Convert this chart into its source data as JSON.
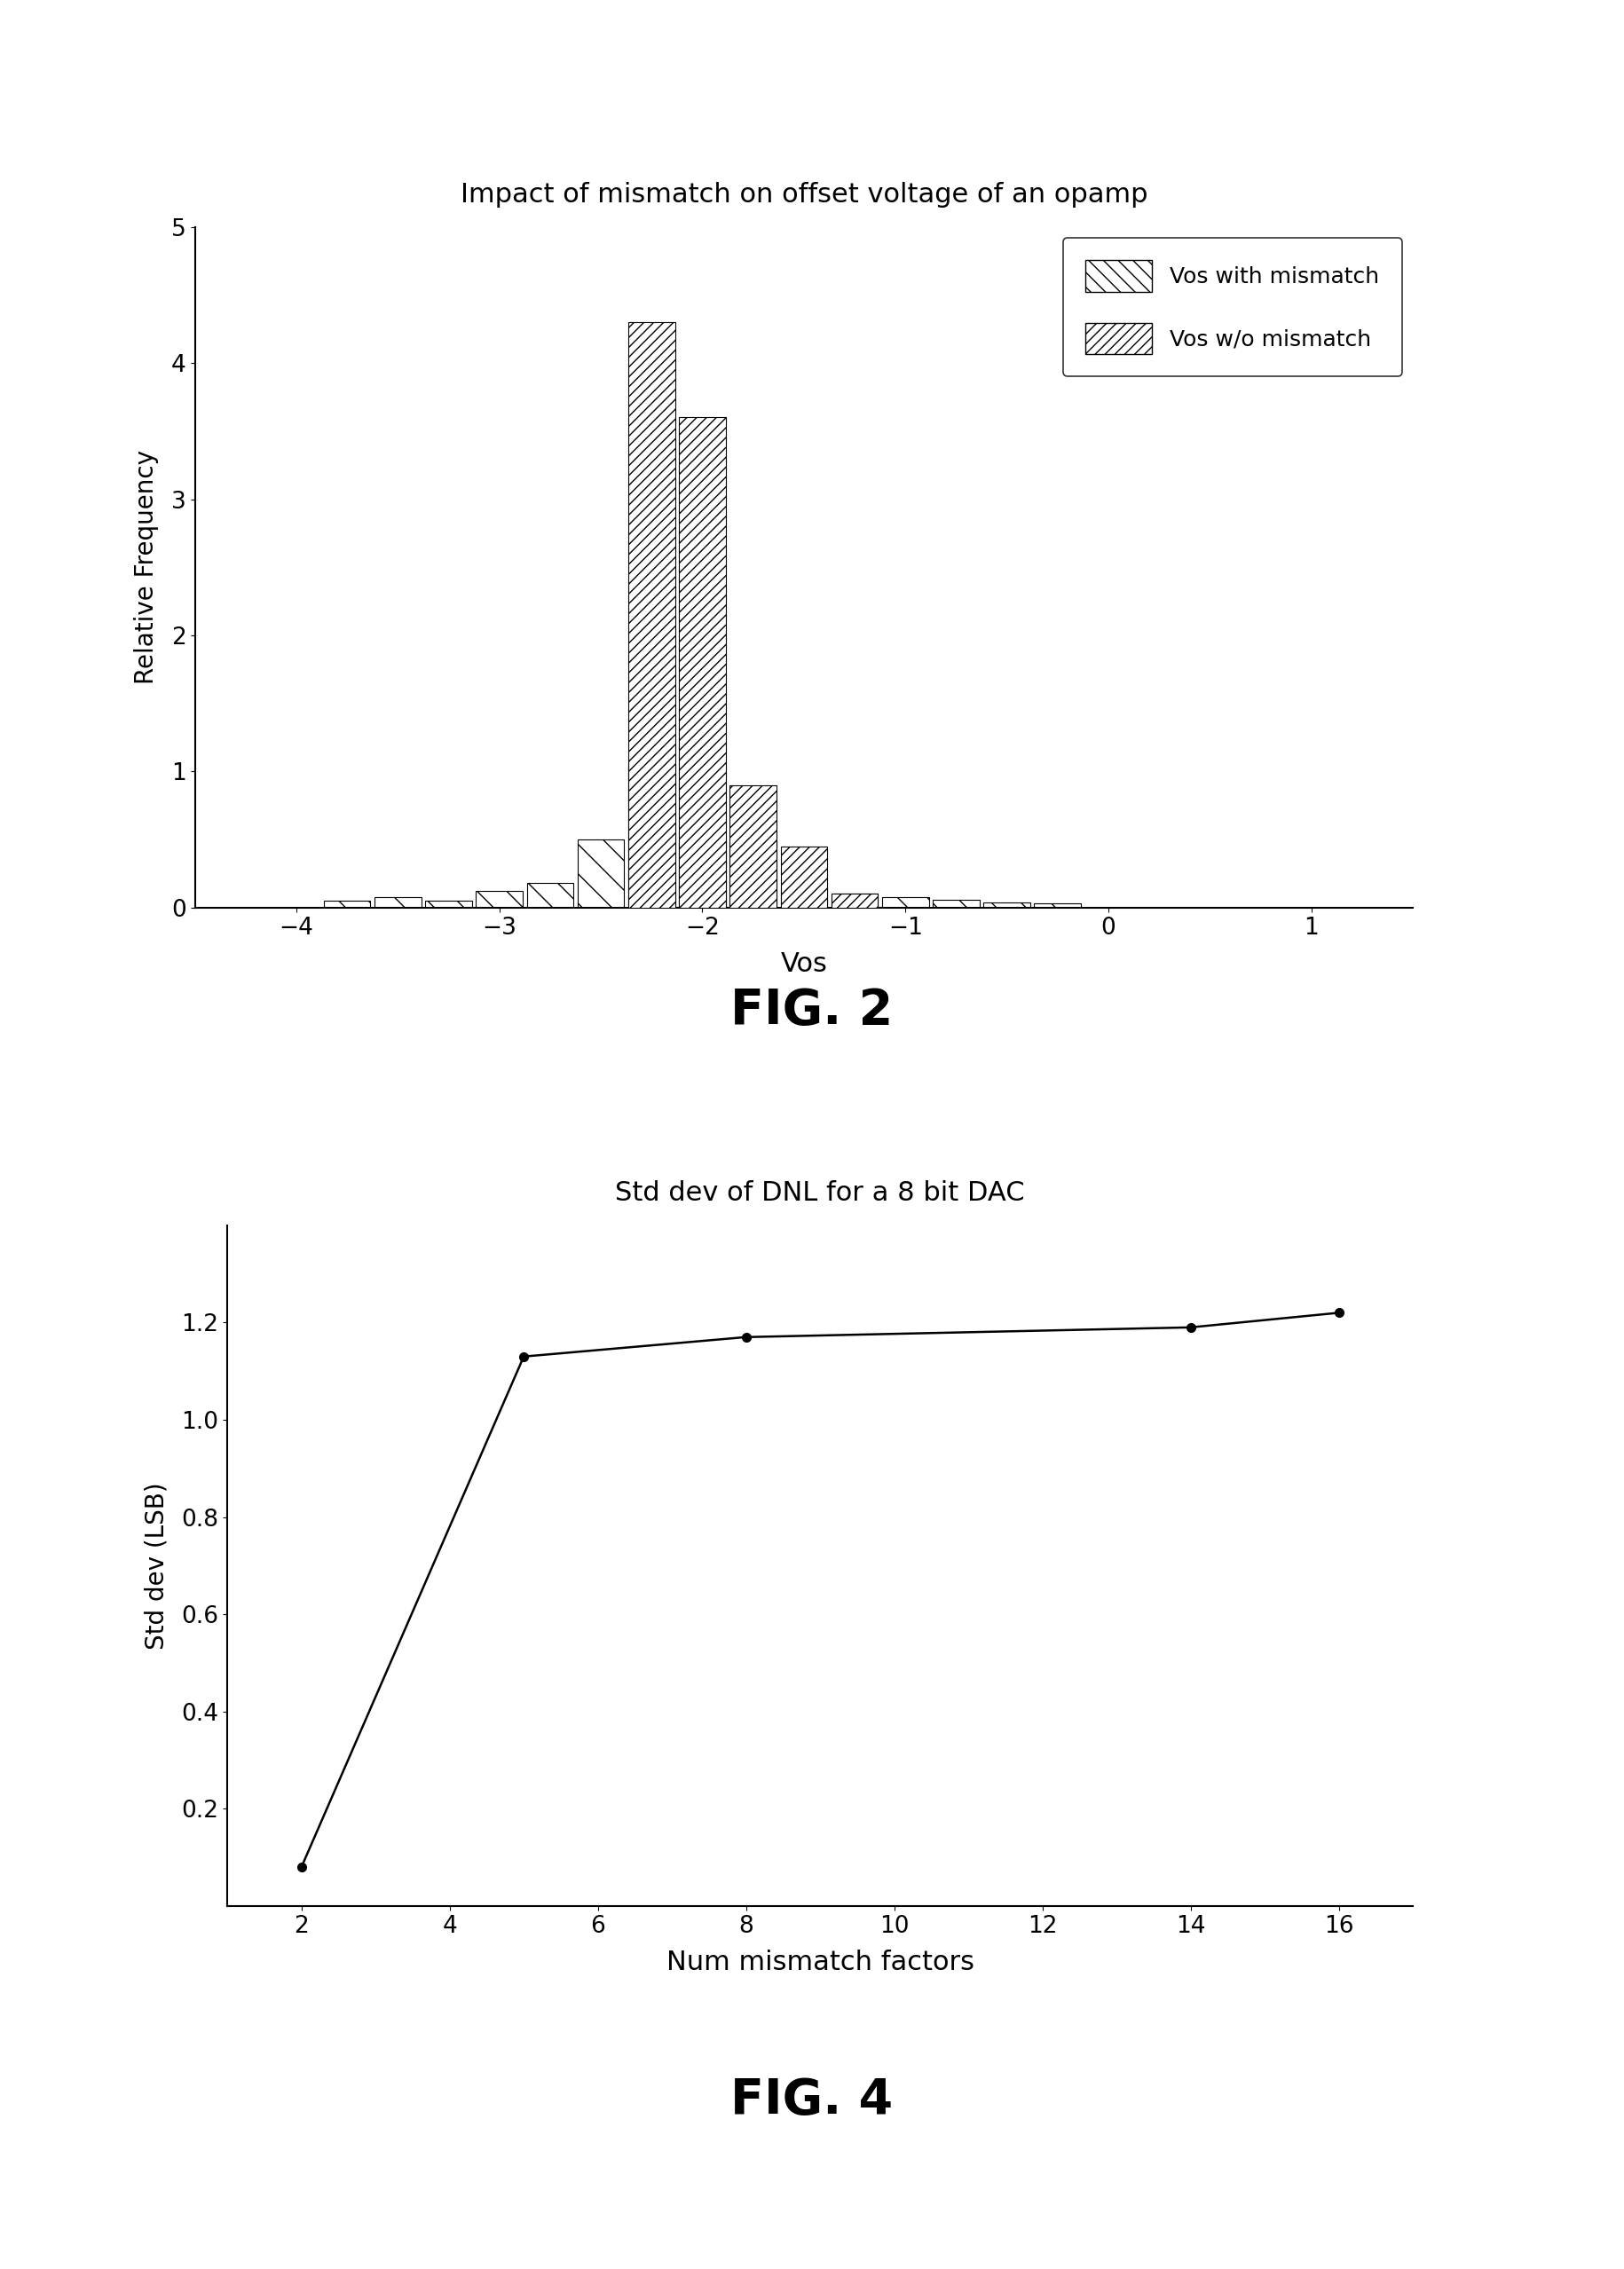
{
  "fig2_title": "Impact of mismatch on offset voltage of an opamp",
  "fig2_xlabel": "Vos",
  "fig2_ylabel": "Relative Frequency",
  "fig2_xlim": [
    -4.5,
    1.5
  ],
  "fig2_ylim": [
    0,
    5
  ],
  "fig2_xticks": [
    -4,
    -3,
    -2,
    -1,
    0,
    1
  ],
  "fig2_yticks": [
    0,
    1,
    2,
    3,
    4,
    5
  ],
  "fig2_label1": "Vos with mismatch",
  "fig2_label2": "Vos w/o mismatch",
  "fig2_caption": "FIG. 2",
  "vos_with_mismatch_bins": [
    -3.75,
    -3.5,
    -3.25,
    -3.0,
    -2.75,
    -2.5,
    -2.25,
    -2.0,
    -1.75,
    -1.5,
    -1.25,
    -1.0,
    -0.75,
    -0.5,
    -0.25
  ],
  "vos_with_mismatch_vals": [
    0.05,
    0.08,
    0.05,
    0.12,
    0.18,
    0.5,
    1.05,
    0.5,
    0.48,
    0.15,
    0.1,
    0.08,
    0.06,
    0.04,
    0.03
  ],
  "vos_wo_mismatch_bins": [
    -2.25,
    -2.0,
    -1.75,
    -1.5,
    -1.25
  ],
  "vos_wo_mismatch_vals": [
    4.3,
    3.6,
    0.9,
    0.45,
    0.1
  ],
  "fig4_title": "Std dev of DNL for a 8 bit DAC",
  "fig4_xlabel": "Num mismatch factors",
  "fig4_ylabel": "Std dev (LSB)",
  "fig4_xlim": [
    1,
    17
  ],
  "fig4_ylim": [
    0,
    1.4
  ],
  "fig4_xticks": [
    2,
    4,
    6,
    8,
    10,
    12,
    14,
    16
  ],
  "fig4_yticks": [
    0.2,
    0.4,
    0.6,
    0.8,
    1.0,
    1.2
  ],
  "fig4_x": [
    2,
    5,
    8,
    14,
    16
  ],
  "fig4_y": [
    0.08,
    1.13,
    1.17,
    1.19,
    1.22
  ],
  "fig4_caption": "FIG. 4"
}
